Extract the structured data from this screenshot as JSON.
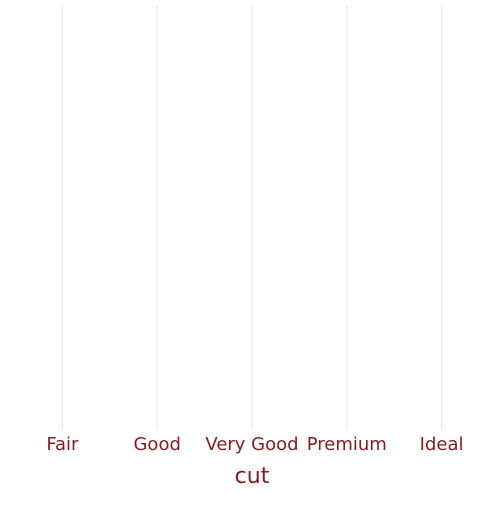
{
  "chart_data": {
    "type": "bar",
    "categories": [
      "Fair",
      "Good",
      "Very Good",
      "Premium",
      "Ideal"
    ],
    "x_label": "cut",
    "grid": true,
    "grid_color": "#e6e6e6",
    "text_color": "#8b1a1a"
  }
}
